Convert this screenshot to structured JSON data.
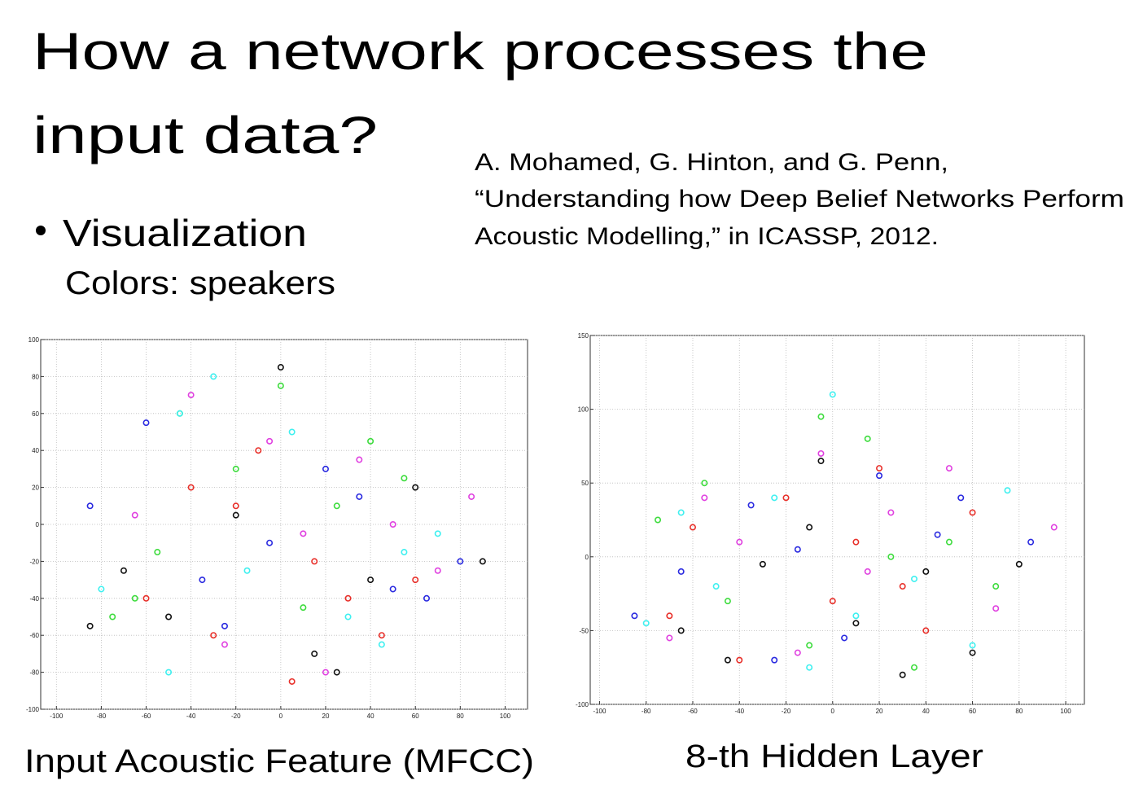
{
  "title": [
    "How a network processes the",
    "input data?"
  ],
  "bullet": "Visualization",
  "subtext": "Colors: speakers",
  "citation": [
    "A. Mohamed, G. Hinton, and G. Penn,",
    "“Understanding how Deep Belief Networks Perform",
    "Acoustic Modelling,” in ICASSP, 2012."
  ],
  "chart_data": [
    {
      "type": "scatter",
      "caption": "Input Acoustic Feature (MFCC)",
      "xlim": [
        -107,
        110
      ],
      "ylim": [
        -100,
        100
      ],
      "xticks": [
        -100,
        -80,
        -60,
        -40,
        -20,
        0,
        20,
        40,
        60,
        80,
        100
      ],
      "yticks": [
        -100,
        -80,
        -60,
        -40,
        -20,
        0,
        20,
        40,
        60,
        80,
        100
      ],
      "grid": true,
      "series": [
        {
          "color": "#e8302a",
          "x": [
            -60,
            -30,
            -10,
            15,
            30,
            45,
            -40,
            5,
            60,
            -20
          ],
          "y": [
            -40,
            -60,
            40,
            -20,
            -40,
            -60,
            20,
            -85,
            -30,
            10
          ]
        },
        {
          "color": "#3ddc3d",
          "x": [
            -75,
            -55,
            -20,
            10,
            25,
            40,
            -65,
            0,
            55,
            -45
          ],
          "y": [
            -50,
            -15,
            30,
            -45,
            10,
            45,
            -40,
            75,
            25,
            60
          ]
        },
        {
          "color": "#2a2ae0",
          "x": [
            -85,
            -35,
            -5,
            20,
            50,
            80,
            -60,
            35,
            65,
            -25
          ],
          "y": [
            10,
            -30,
            -10,
            30,
            -35,
            -20,
            55,
            15,
            -40,
            -55
          ]
        },
        {
          "color": "#3ff0f0",
          "x": [
            -80,
            -45,
            -15,
            30,
            55,
            70,
            -50,
            5,
            45,
            -30
          ],
          "y": [
            -35,
            60,
            -25,
            -50,
            -15,
            -5,
            -80,
            50,
            -65,
            80
          ]
        },
        {
          "color": "#e040e0",
          "x": [
            -65,
            -40,
            10,
            -5,
            35,
            70,
            -25,
            50,
            85,
            20
          ],
          "y": [
            5,
            70,
            -5,
            45,
            35,
            -25,
            -65,
            0,
            15,
            -80
          ]
        },
        {
          "color": "#111111",
          "x": [
            -70,
            -50,
            -20,
            15,
            40,
            60,
            -85,
            0,
            90,
            25
          ],
          "y": [
            -25,
            -50,
            5,
            -70,
            -30,
            20,
            -55,
            85,
            -20,
            -80
          ]
        }
      ]
    },
    {
      "type": "scatter",
      "caption": "8-th Hidden Layer",
      "xlim": [
        -104,
        108
      ],
      "ylim": [
        -100,
        150
      ],
      "xticks": [
        -100,
        -80,
        -60,
        -40,
        -20,
        0,
        20,
        40,
        60,
        80,
        100
      ],
      "yticks": [
        -100,
        -50,
        0,
        50,
        100,
        150
      ],
      "grid": true,
      "series": [
        {
          "color": "#e8302a",
          "x": [
            -60,
            -20,
            0,
            20,
            40,
            -40,
            10,
            60,
            -70,
            30
          ],
          "y": [
            20,
            40,
            -30,
            60,
            -50,
            -70,
            10,
            30,
            -40,
            -20
          ]
        },
        {
          "color": "#3ddc3d",
          "x": [
            -75,
            -45,
            -10,
            15,
            35,
            -55,
            25,
            70,
            -5,
            50
          ],
          "y": [
            25,
            -30,
            -60,
            80,
            -75,
            50,
            0,
            -20,
            95,
            10
          ]
        },
        {
          "color": "#2a2ae0",
          "x": [
            -85,
            -35,
            -15,
            5,
            45,
            -65,
            20,
            55,
            85,
            -25
          ],
          "y": [
            -40,
            35,
            5,
            -55,
            15,
            -10,
            55,
            40,
            10,
            -70
          ]
        },
        {
          "color": "#3ff0f0",
          "x": [
            -80,
            -50,
            -25,
            10,
            35,
            -65,
            60,
            75,
            0,
            -10
          ],
          "y": [
            -45,
            -20,
            40,
            -40,
            -15,
            30,
            -60,
            45,
            110,
            -75
          ]
        },
        {
          "color": "#e040e0",
          "x": [
            -70,
            -40,
            -15,
            25,
            50,
            -55,
            70,
            95,
            -5,
            15
          ],
          "y": [
            -55,
            10,
            -65,
            30,
            60,
            40,
            -35,
            20,
            70,
            -10
          ]
        },
        {
          "color": "#111111",
          "x": [
            -65,
            -30,
            -10,
            10,
            40,
            -45,
            60,
            80,
            -5,
            30
          ],
          "y": [
            -50,
            -5,
            20,
            -45,
            -10,
            -70,
            -65,
            -5,
            65,
            -80
          ]
        }
      ]
    }
  ]
}
